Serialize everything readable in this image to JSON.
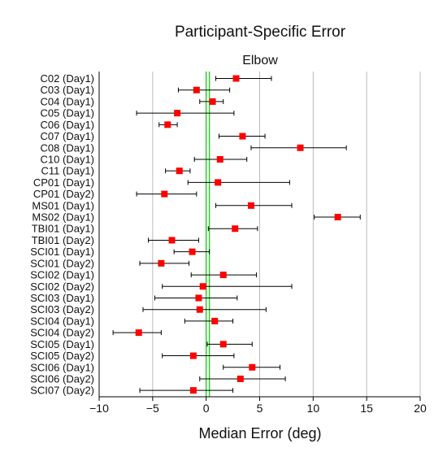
{
  "chart_data": {
    "type": "scatter",
    "title": "Participant-Specific Error",
    "subtitle": "Elbow",
    "xlabel": "Median Error (deg)",
    "ylabel": "",
    "xlim": [
      -10,
      20
    ],
    "xticks": [
      -10,
      -5,
      0,
      5,
      10,
      15,
      20
    ],
    "xtick_labels": [
      "−10",
      "−5",
      "0",
      "5",
      "10",
      "15",
      "20"
    ],
    "grid": "vertical",
    "reference_band": [
      0,
      0.3
    ],
    "colors": {
      "marker": "#ff0000",
      "errorbar": "#000000",
      "reference": "#33cc33",
      "grid": "#bbbbbb"
    },
    "categories": [
      "C02 (Day1)",
      "C03 (Day1)",
      "C04 (Day1)",
      "C05 (Day1)",
      "C06 (Day1)",
      "C07 (Day1)",
      "C08 (Day1)",
      "C10 (Day1)",
      "C11 (Day1)",
      "CP01 (Day1)",
      "CP01 (Day2)",
      "MS01 (Day1)",
      "MS02 (Day1)",
      "TBI01 (Day1)",
      "TBI01 (Day2)",
      "SCI01 (Day1)",
      "SCI01 (Day2)",
      "SCI02 (Day1)",
      "SCI02 (Day2)",
      "SCI03 (Day1)",
      "SCI03 (Day2)",
      "SCI04 (Day1)",
      "SCI04 (Day2)",
      "SCI05 (Day1)",
      "SCI05 (Day2)",
      "SCI06 (Day1)",
      "SCI06 (Day2)",
      "SCI07 (Day2)"
    ],
    "median": [
      2.8,
      -0.9,
      0.6,
      -2.7,
      -3.6,
      3.4,
      8.8,
      1.3,
      -2.5,
      1.1,
      -3.9,
      4.2,
      12.3,
      2.7,
      -3.2,
      -1.3,
      -4.2,
      1.6,
      -0.3,
      -0.7,
      -0.6,
      0.8,
      -6.3,
      1.6,
      -1.2,
      4.3,
      3.2,
      -1.2
    ],
    "lower": [
      0.9,
      -2.6,
      -0.6,
      -6.5,
      -4.4,
      1.2,
      4.2,
      -1.1,
      -3.8,
      -1.7,
      -6.5,
      0.9,
      10.1,
      0.2,
      -5.4,
      -3.0,
      -6.2,
      -1.4,
      -4.1,
      -4.8,
      -5.9,
      -2.0,
      -8.7,
      0.1,
      -4.1,
      1.6,
      -0.6,
      -6.2
    ],
    "upper": [
      6.1,
      2.2,
      1.6,
      2.6,
      -2.7,
      5.5,
      13.1,
      3.8,
      -1.5,
      7.8,
      -0.9,
      8.0,
      14.4,
      4.8,
      -0.7,
      0.3,
      -1.6,
      4.7,
      8.0,
      2.9,
      5.6,
      2.5,
      -4.2,
      4.3,
      2.6,
      6.9,
      7.4,
      2.5
    ]
  }
}
